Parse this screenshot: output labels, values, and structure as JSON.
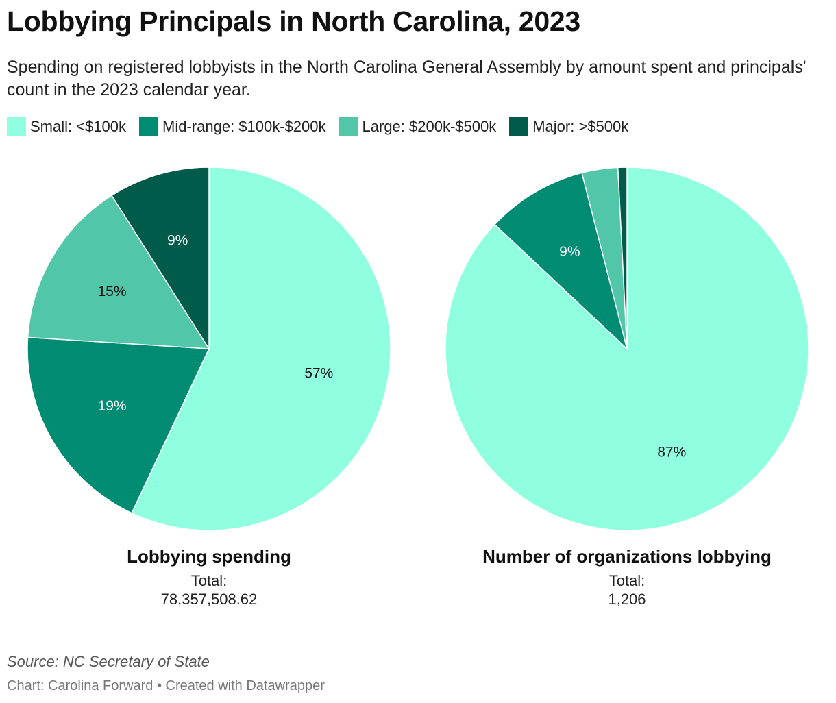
{
  "title": "Lobbying Principals in North Carolina, 2023",
  "subtitle": "Spending on registered lobbyists in the North Carolina General Assembly by amount spent and principals' count in the 2023 calendar year.",
  "legend": [
    {
      "label": "Small: <$100k",
      "color": "#8fffe0"
    },
    {
      "label": "Mid-range: $100k-$200k",
      "color": "#008c72"
    },
    {
      "label": "Large: $200k-$500k",
      "color": "#52c6a9"
    },
    {
      "label": "Major: >$500k",
      "color": "#005b4a"
    }
  ],
  "chart_data": [
    {
      "type": "pie",
      "title": "Lobbying spending",
      "total_label": "Total:",
      "total_value": "78,357,508.62",
      "categories": [
        "Small: <$100k",
        "Mid-range: $100k-$200k",
        "Large: $200k-$500k",
        "Major: >$500k"
      ],
      "values": [
        57,
        19,
        15,
        9
      ],
      "data_labels": [
        "57%",
        "19%",
        "15%",
        "9%"
      ],
      "colors": [
        "#8fffe0",
        "#008c72",
        "#52c6a9",
        "#005b4a"
      ],
      "label_colors": [
        "#111111",
        "#ffffff",
        "#111111",
        "#ffffff"
      ]
    },
    {
      "type": "pie",
      "title": "Number of organizations lobbying",
      "total_label": "Total:",
      "total_value": "1,206",
      "categories": [
        "Small: <$100k",
        "Mid-range: $100k-$200k",
        "Large: $200k-$500k",
        "Major: >$500k"
      ],
      "values": [
        87,
        9,
        3.2,
        0.8
      ],
      "data_labels": [
        "87%",
        "9%",
        "",
        ""
      ],
      "colors": [
        "#8fffe0",
        "#008c72",
        "#52c6a9",
        "#005b4a"
      ],
      "label_colors": [
        "#111111",
        "#ffffff",
        "#111111",
        "#ffffff"
      ]
    }
  ],
  "source": "Source: NC Secretary of State",
  "credit": "Chart: Carolina Forward • Created with Datawrapper"
}
